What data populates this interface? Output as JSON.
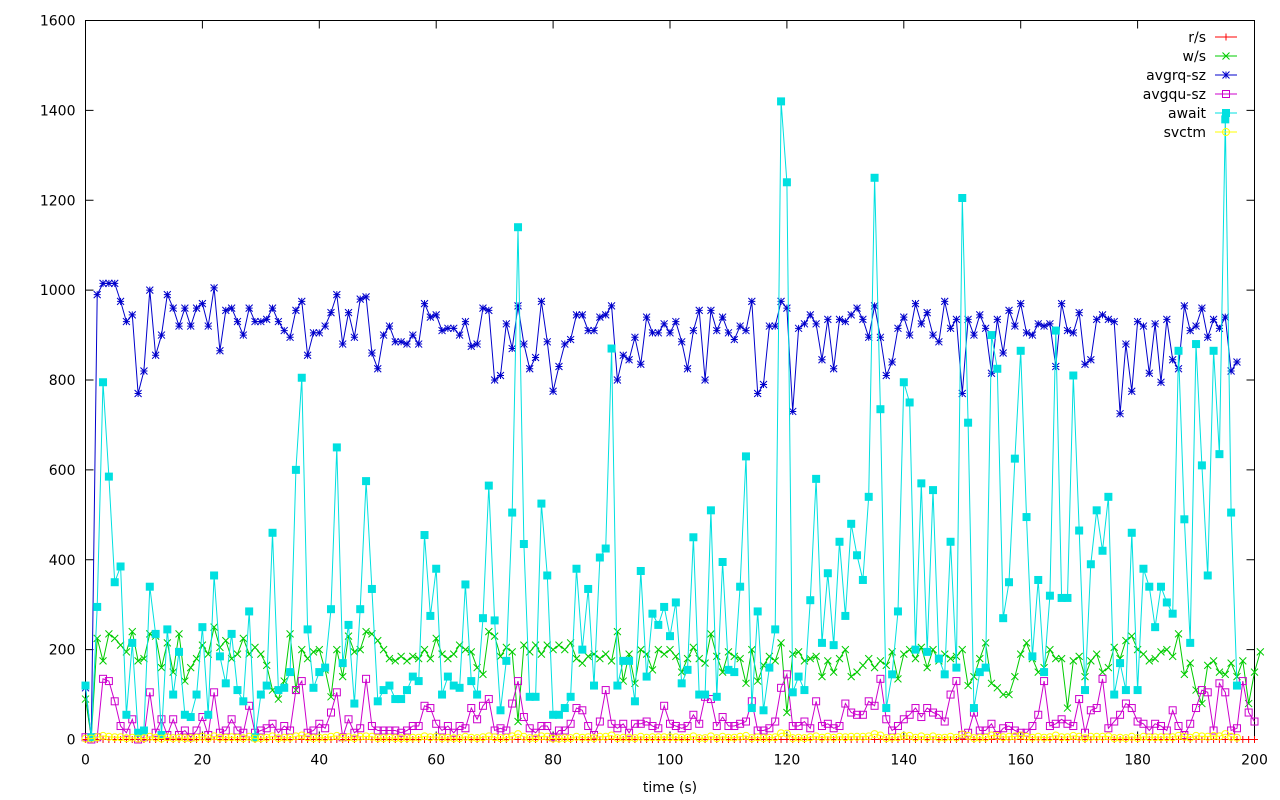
{
  "chart_data": {
    "type": "line",
    "title": "",
    "xlabel": "time (s)",
    "ylabel": "",
    "xlim": [
      0,
      200
    ],
    "ylim": [
      0,
      1600
    ],
    "xticks": [
      0,
      20,
      40,
      60,
      80,
      100,
      120,
      140,
      160,
      180,
      200
    ],
    "yticks": [
      0,
      200,
      400,
      600,
      800,
      1000,
      1200,
      1400,
      1600
    ],
    "grid": false,
    "legend_position": "top-right",
    "series": [
      {
        "name": "r/s",
        "color": "#ff0000",
        "marker": "plus",
        "values": [
          0,
          0,
          0,
          0,
          0,
          0,
          0,
          0,
          0,
          0,
          0,
          0,
          0,
          0,
          0,
          0,
          0,
          0,
          0,
          0,
          0,
          0,
          0,
          0,
          0,
          0,
          0,
          0,
          0,
          0,
          0,
          0,
          0,
          0,
          0,
          0,
          0,
          0,
          0,
          0,
          0,
          0,
          0,
          0,
          0,
          0,
          0,
          0,
          0,
          0,
          0,
          0,
          0,
          0,
          0,
          0,
          0,
          0,
          0,
          0,
          0,
          0,
          0,
          0,
          0,
          0,
          0,
          0,
          0,
          0,
          0,
          0,
          0,
          0,
          0,
          0,
          0,
          0,
          0,
          0,
          0,
          0,
          0,
          0,
          0,
          0,
          0,
          0,
          0,
          0,
          0,
          0,
          0,
          0,
          0,
          0,
          0,
          0,
          0,
          0,
          0,
          0,
          0,
          0,
          0,
          0,
          0,
          0,
          0,
          0,
          0,
          0,
          0,
          0,
          0,
          0,
          0,
          0,
          0,
          0,
          0,
          0,
          0,
          0,
          0,
          0,
          0,
          0,
          0,
          0,
          0,
          0,
          0,
          0,
          0,
          0,
          0,
          0,
          0,
          0,
          0,
          0,
          0,
          0,
          0,
          0,
          0,
          0,
          0,
          0,
          0,
          0,
          0,
          0,
          0,
          0,
          0,
          0,
          0,
          0,
          0,
          0,
          0,
          0,
          0,
          0,
          0,
          0,
          0,
          0,
          0,
          0,
          0,
          0,
          0,
          0,
          0,
          0,
          0,
          0,
          0,
          0,
          0,
          0,
          0,
          0,
          0,
          0,
          0,
          0,
          0,
          0,
          0,
          0,
          0,
          0,
          0,
          0,
          0,
          0,
          0
        ]
      },
      {
        "name": "w/s",
        "color": "#00cc00",
        "marker": "x",
        "values": [
          90,
          5,
          225,
          175,
          235,
          225,
          210,
          195,
          240,
          175,
          180,
          235,
          230,
          160,
          215,
          150,
          235,
          130,
          160,
          180,
          210,
          190,
          250,
          205,
          220,
          180,
          190,
          225,
          190,
          205,
          190,
          165,
          110,
          90,
          130,
          235,
          110,
          200,
          180,
          195,
          200,
          155,
          95,
          200,
          140,
          230,
          195,
          200,
          240,
          235,
          220,
          200,
          180,
          175,
          185,
          175,
          185,
          180,
          200,
          180,
          225,
          190,
          180,
          190,
          210,
          200,
          195,
          160,
          145,
          240,
          230,
          185,
          205,
          195,
          40,
          210,
          195,
          210,
          190,
          210,
          200,
          210,
          200,
          215,
          180,
          170,
          185,
          190,
          180,
          190,
          175,
          240,
          130,
          190,
          125,
          200,
          190,
          155,
          200,
          190,
          200,
          185,
          150,
          180,
          205,
          180,
          170,
          235,
          185,
          150,
          195,
          185,
          180,
          125,
          200,
          130,
          165,
          185,
          175,
          215,
          60,
          190,
          195,
          175,
          180,
          185,
          140,
          175,
          150,
          180,
          200,
          140,
          150,
          165,
          180,
          160,
          175,
          165,
          195,
          135,
          190,
          200,
          180,
          205,
          160,
          200,
          175,
          190,
          180,
          185,
          200,
          120,
          140,
          180,
          215,
          125,
          115,
          100,
          100,
          140,
          190,
          215,
          180,
          150,
          160,
          200,
          180,
          180,
          70,
          175,
          185,
          140,
          175,
          190,
          150,
          160,
          205,
          180,
          220,
          230,
          200,
          190,
          175,
          180,
          195,
          200,
          185,
          235,
          145,
          170,
          110,
          80,
          165,
          175,
          150,
          145,
          170,
          140,
          175,
          80,
          150,
          195
        ]
      },
      {
        "name": "avgrq-sz",
        "color": "#0000cc",
        "marker": "star",
        "values": [
          115,
          5,
          990,
          1015,
          1015,
          1015,
          975,
          930,
          945,
          770,
          820,
          1000,
          855,
          900,
          990,
          960,
          920,
          960,
          920,
          960,
          970,
          920,
          1005,
          865,
          955,
          960,
          930,
          900,
          960,
          930,
          930,
          935,
          960,
          930,
          910,
          895,
          955,
          975,
          855,
          905,
          905,
          920,
          950,
          990,
          880,
          950,
          895,
          980,
          985,
          860,
          825,
          900,
          920,
          885,
          885,
          880,
          900,
          880,
          970,
          940,
          945,
          910,
          915,
          915,
          900,
          930,
          875,
          880,
          960,
          955,
          800,
          810,
          925,
          870,
          965,
          880,
          825,
          850,
          975,
          885,
          775,
          830,
          880,
          890,
          945,
          945,
          910,
          910,
          940,
          945,
          965,
          800,
          855,
          845,
          895,
          835,
          940,
          905,
          905,
          925,
          905,
          930,
          885,
          825,
          910,
          955,
          800,
          955,
          910,
          940,
          905,
          890,
          920,
          910,
          975,
          770,
          790,
          920,
          920,
          975,
          960,
          730,
          915,
          925,
          945,
          925,
          845,
          935,
          825,
          935,
          930,
          945,
          960,
          935,
          895,
          965,
          895,
          810,
          840,
          915,
          940,
          900,
          970,
          925,
          950,
          900,
          885,
          975,
          915,
          935,
          770,
          935,
          900,
          945,
          915,
          815,
          935,
          860,
          955,
          920,
          970,
          905,
          900,
          925,
          920,
          925,
          830,
          970,
          910,
          905,
          950,
          835,
          845,
          935,
          945,
          935,
          930,
          725,
          880,
          775,
          930,
          920,
          815,
          925,
          795,
          935,
          845,
          825,
          965,
          910,
          920,
          960,
          895,
          935,
          915,
          940,
          820,
          840
        ]
      },
      {
        "name": "avgqu-sz",
        "color": "#cc00cc",
        "marker": "square",
        "values": [
          5,
          0,
          5,
          135,
          130,
          85,
          30,
          15,
          45,
          0,
          5,
          105,
          15,
          45,
          10,
          45,
          10,
          20,
          5,
          20,
          50,
          10,
          105,
          15,
          20,
          45,
          20,
          15,
          75,
          15,
          20,
          25,
          35,
          15,
          30,
          20,
          110,
          130,
          15,
          20,
          35,
          25,
          60,
          105,
          5,
          45,
          15,
          25,
          135,
          30,
          20,
          20,
          20,
          20,
          15,
          20,
          30,
          30,
          75,
          70,
          35,
          20,
          30,
          15,
          30,
          25,
          70,
          45,
          75,
          90,
          20,
          25,
          20,
          80,
          130,
          50,
          25,
          15,
          30,
          30,
          5,
          20,
          20,
          35,
          70,
          65,
          30,
          10,
          40,
          110,
          35,
          25,
          35,
          15,
          35,
          35,
          40,
          30,
          25,
          75,
          35,
          30,
          25,
          30,
          55,
          35,
          95,
          90,
          30,
          50,
          30,
          30,
          35,
          40,
          85,
          20,
          20,
          25,
          40,
          115,
          145,
          30,
          30,
          40,
          25,
          85,
          30,
          35,
          25,
          30,
          80,
          60,
          55,
          55,
          85,
          75,
          135,
          45,
          20,
          30,
          45,
          55,
          70,
          50,
          70,
          60,
          55,
          40,
          100,
          130,
          10,
          15,
          60,
          20,
          20,
          35,
          10,
          25,
          30,
          20,
          15,
          15,
          30,
          55,
          130,
          30,
          35,
          45,
          35,
          30,
          90,
          15,
          65,
          70,
          135,
          25,
          40,
          55,
          80,
          70,
          40,
          35,
          20,
          35,
          30,
          20,
          65,
          30,
          10,
          35,
          70,
          110,
          105,
          20,
          125,
          105,
          20,
          25,
          130,
          60,
          40
        ]
      },
      {
        "name": "await",
        "color": "#00e0e0",
        "marker": "filled-square",
        "values": [
          120,
          5,
          295,
          795,
          585,
          350,
          385,
          55,
          215,
          15,
          20,
          340,
          235,
          10,
          245,
          100,
          195,
          55,
          50,
          100,
          250,
          55,
          365,
          185,
          125,
          235,
          110,
          85,
          285,
          5,
          100,
          120,
          460,
          110,
          115,
          150,
          600,
          805,
          245,
          115,
          150,
          160,
          290,
          650,
          170,
          255,
          80,
          290,
          575,
          335,
          85,
          110,
          120,
          90,
          90,
          110,
          140,
          130,
          455,
          275,
          380,
          100,
          140,
          120,
          115,
          345,
          130,
          100,
          270,
          565,
          265,
          65,
          175,
          505,
          1140,
          435,
          95,
          95,
          525,
          365,
          55,
          55,
          70,
          95,
          380,
          200,
          335,
          120,
          405,
          425,
          870,
          120,
          175,
          175,
          85,
          375,
          140,
          280,
          255,
          295,
          230,
          305,
          125,
          155,
          450,
          100,
          100,
          510,
          95,
          395,
          155,
          150,
          340,
          630,
          70,
          285,
          65,
          160,
          245,
          1420,
          1240,
          105,
          140,
          110,
          310,
          580,
          215,
          370,
          210,
          440,
          275,
          480,
          410,
          355,
          540,
          1250,
          735,
          70,
          145,
          285,
          795,
          750,
          200,
          570,
          195,
          555,
          180,
          145,
          440,
          160,
          1205,
          705,
          70,
          150,
          160,
          900,
          825,
          270,
          350,
          625,
          865,
          495,
          185,
          355,
          150,
          320,
          910,
          315,
          315,
          810,
          465,
          110,
          390,
          510,
          420,
          540,
          100,
          170,
          110,
          460,
          110,
          380,
          340,
          250,
          340,
          305,
          280,
          865,
          490,
          215,
          880,
          610,
          365,
          865,
          635,
          1380,
          505,
          120
        ]
      },
      {
        "name": "svctm",
        "color": "#ffff00",
        "marker": "circle",
        "values": [
          2,
          2,
          5,
          8,
          6,
          5,
          5,
          3,
          4,
          2,
          3,
          6,
          4,
          2,
          5,
          3,
          4,
          3,
          3,
          4,
          6,
          3,
          7,
          4,
          4,
          5,
          4,
          3,
          6,
          2,
          3,
          4,
          7,
          3,
          4,
          4,
          7,
          9,
          5,
          3,
          4,
          4,
          6,
          8,
          4,
          5,
          3,
          6,
          7,
          6,
          3,
          3,
          4,
          3,
          3,
          3,
          4,
          4,
          7,
          5,
          6,
          3,
          4,
          3,
          3,
          6,
          4,
          3,
          5,
          7,
          5,
          3,
          4,
          7,
          12,
          6,
          3,
          3,
          7,
          6,
          2,
          2,
          3,
          3,
          6,
          4,
          5,
          3,
          6,
          6,
          9,
          3,
          4,
          4,
          3,
          6,
          4,
          5,
          5,
          5,
          5,
          5,
          4,
          4,
          7,
          3,
          3,
          7,
          3,
          6,
          4,
          4,
          6,
          8,
          3,
          5,
          3,
          4,
          5,
          14,
          13,
          3,
          4,
          3,
          5,
          7,
          4,
          6,
          4,
          6,
          5,
          6,
          6,
          6,
          7,
          12,
          9,
          3,
          4,
          5,
          8,
          8,
          4,
          7,
          4,
          7,
          4,
          4,
          6,
          4,
          11,
          8,
          3,
          4,
          4,
          9,
          8,
          5,
          6,
          7,
          9,
          6,
          4,
          6,
          4,
          5,
          9,
          5,
          5,
          8,
          6,
          3,
          6,
          6,
          6,
          7,
          3,
          4,
          3,
          6,
          3,
          6,
          5,
          5,
          5,
          5,
          5,
          8,
          6,
          4,
          8,
          7,
          6,
          8,
          7,
          12,
          6,
          4
        ]
      }
    ]
  }
}
